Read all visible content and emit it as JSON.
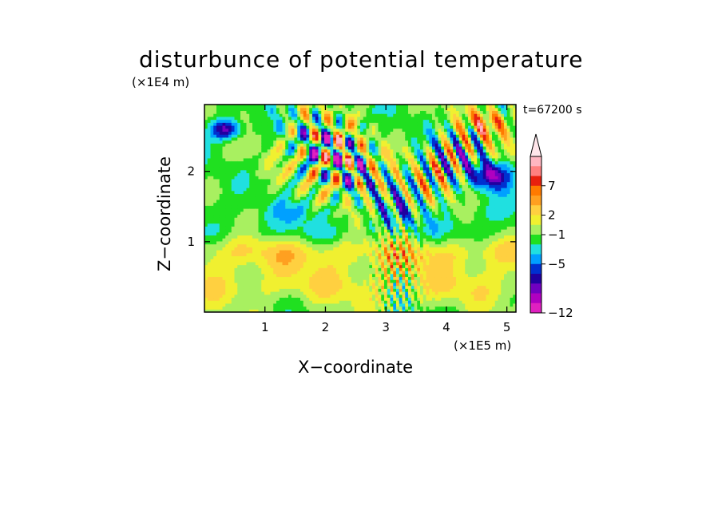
{
  "chart_data": {
    "type": "heatmap",
    "title": "disturbunce of potential temperature",
    "time_label": "t=67200 s",
    "xlabel": "X−coordinate",
    "ylabel": "Z−coordinate",
    "x_unit": "(×1E5 m)",
    "y_unit": "(×1E4 m)",
    "xlim": [
      0,
      5.15
    ],
    "ylim": [
      0,
      2.95
    ],
    "x_ticks": [
      "1",
      "2",
      "3",
      "4",
      "5"
    ],
    "y_ticks": [
      "1",
      "2"
    ],
    "colorbar": {
      "labels": [
        "7",
        "2",
        "−1",
        "−5",
        "−12"
      ],
      "colors": [
        "#ffb6c1",
        "#ff8080",
        "#e8200e",
        "#ff7a00",
        "#ffa020",
        "#ffd040",
        "#f0f030",
        "#a8f060",
        "#20e020",
        "#20e0e0",
        "#00a0ff",
        "#0030d0",
        "#2000a0",
        "#7000c0",
        "#b000c0",
        "#e020c0"
      ]
    },
    "field_description": "potential temperature disturbance field over x∈[0,5.15]e5 m, z∈[0,2.95]e4 m"
  }
}
